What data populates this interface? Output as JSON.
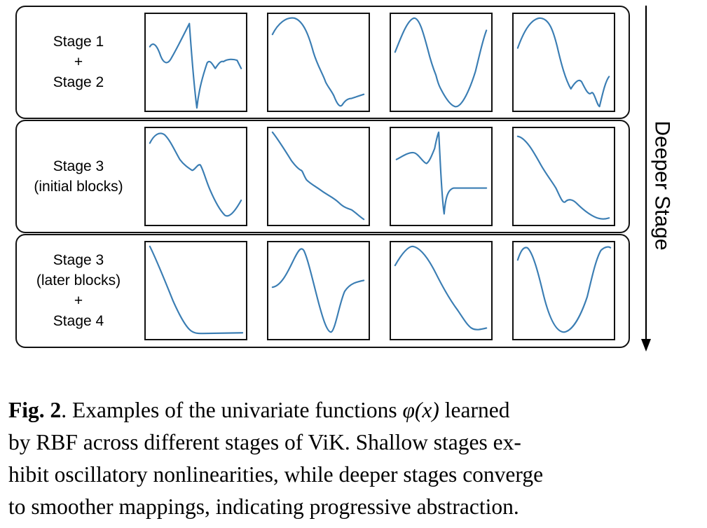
{
  "figure": {
    "rows": [
      {
        "label_lines": [
          "Stage 1",
          "+",
          "Stage 2"
        ],
        "panels": [
          {
            "curve": "oscillatory spike then dip"
          },
          {
            "curve": "peak then decline with small bump"
          },
          {
            "curve": "U-shape valley"
          },
          {
            "curve": "peak then wavy decline"
          }
        ]
      },
      {
        "label_lines": [
          "Stage 3",
          "(initial blocks)"
        ],
        "panels": [
          {
            "curve": "decline with bump then valley"
          },
          {
            "curve": "wavy monotone decline"
          },
          {
            "curve": "sharp spike then flat"
          },
          {
            "curve": "decline with small bump"
          }
        ]
      },
      {
        "label_lines": [
          "Stage 3",
          "(later blocks)",
          "+",
          "Stage 4"
        ],
        "panels": [
          {
            "curve": "smooth decline to flat"
          },
          {
            "curve": "peak then valley"
          },
          {
            "curve": "peak then smooth decline"
          },
          {
            "curve": "smooth U-shape"
          }
        ]
      }
    ],
    "side_label": "Deeper Stage",
    "curve_color": "#3a7db3"
  },
  "caption": {
    "lead": "Fig. 2",
    "after_lead": ".  Examples of the univariate functions ",
    "symbol": "φ(x)",
    "line1_tail": " learned",
    "line2": "by RBF across different stages of ViK. Shallow stages ex-",
    "line3": "hibit oscillatory nonlinearities, while deeper stages converge",
    "line4": "to smoother mappings, indicating progressive abstraction."
  }
}
